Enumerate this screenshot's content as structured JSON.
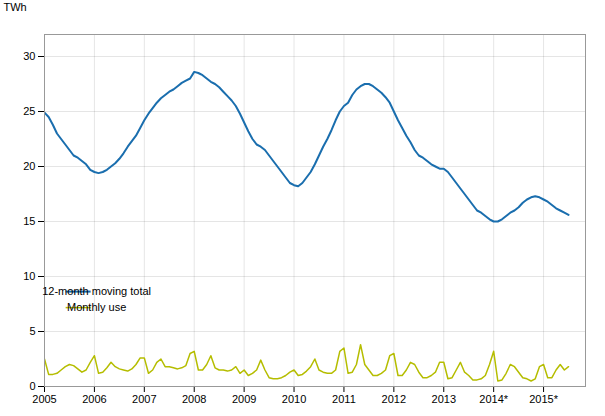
{
  "chart_data": {
    "type": "line",
    "ylabel": "TWh",
    "xlim": [
      2005.0,
      2015.84
    ],
    "ylim": [
      0,
      32
    ],
    "yticks": [
      0,
      5,
      10,
      15,
      20,
      25,
      30
    ],
    "xticks": [
      2005,
      2006,
      2007,
      2008,
      2009,
      2010,
      2011,
      2012,
      2013,
      {
        "value": 2014,
        "label": "2014*"
      },
      {
        "value": 2015,
        "label": "2015*"
      }
    ],
    "grid": true,
    "legend": "lower left",
    "x": [
      2005.0,
      2005.083,
      2005.167,
      2005.25,
      2005.333,
      2005.417,
      2005.5,
      2005.583,
      2005.667,
      2005.75,
      2005.833,
      2005.917,
      2006.0,
      2006.083,
      2006.167,
      2006.25,
      2006.333,
      2006.417,
      2006.5,
      2006.583,
      2006.667,
      2006.75,
      2006.833,
      2006.917,
      2007.0,
      2007.083,
      2007.167,
      2007.25,
      2007.333,
      2007.417,
      2007.5,
      2007.583,
      2007.667,
      2007.75,
      2007.833,
      2007.917,
      2008.0,
      2008.083,
      2008.167,
      2008.25,
      2008.333,
      2008.417,
      2008.5,
      2008.583,
      2008.667,
      2008.75,
      2008.833,
      2008.917,
      2009.0,
      2009.083,
      2009.167,
      2009.25,
      2009.333,
      2009.417,
      2009.5,
      2009.583,
      2009.667,
      2009.75,
      2009.833,
      2009.917,
      2010.0,
      2010.083,
      2010.167,
      2010.25,
      2010.333,
      2010.417,
      2010.5,
      2010.583,
      2010.667,
      2010.75,
      2010.833,
      2010.917,
      2011.0,
      2011.083,
      2011.167,
      2011.25,
      2011.333,
      2011.417,
      2011.5,
      2011.583,
      2011.667,
      2011.75,
      2011.833,
      2011.917,
      2012.0,
      2012.083,
      2012.167,
      2012.25,
      2012.333,
      2012.417,
      2012.5,
      2012.583,
      2012.667,
      2012.75,
      2012.833,
      2012.917,
      2013.0,
      2013.083,
      2013.167,
      2013.25,
      2013.333,
      2013.417,
      2013.5,
      2013.583,
      2013.667,
      2013.75,
      2013.833,
      2013.917,
      2014.0,
      2014.083,
      2014.167,
      2014.25,
      2014.333,
      2014.417,
      2014.5,
      2014.583,
      2014.667,
      2014.75,
      2014.833,
      2014.917,
      2015.0,
      2015.083,
      2015.167,
      2015.25,
      2015.333,
      2015.417,
      2015.5
    ],
    "series": [
      {
        "name": "12-month moving total",
        "color": "#1a6eae",
        "values": [
          24.9,
          24.5,
          23.8,
          23.0,
          22.5,
          22.0,
          21.5,
          21.0,
          20.8,
          20.5,
          20.2,
          19.7,
          19.5,
          19.4,
          19.5,
          19.7,
          20.0,
          20.3,
          20.7,
          21.2,
          21.8,
          22.3,
          22.8,
          23.5,
          24.2,
          24.8,
          25.3,
          25.8,
          26.2,
          26.5,
          26.8,
          27.0,
          27.3,
          27.6,
          27.8,
          28.0,
          28.6,
          28.5,
          28.3,
          28.0,
          27.7,
          27.5,
          27.2,
          26.8,
          26.4,
          26.0,
          25.5,
          24.8,
          24.0,
          23.2,
          22.5,
          22.0,
          21.8,
          21.5,
          21.0,
          20.5,
          20.0,
          19.5,
          19.0,
          18.5,
          18.3,
          18.2,
          18.5,
          19.0,
          19.5,
          20.2,
          21.0,
          21.8,
          22.5,
          23.3,
          24.2,
          25.0,
          25.5,
          25.8,
          26.5,
          27.0,
          27.3,
          27.5,
          27.5,
          27.3,
          27.0,
          26.7,
          26.3,
          25.8,
          25.0,
          24.2,
          23.5,
          22.8,
          22.2,
          21.5,
          21.0,
          20.8,
          20.5,
          20.2,
          20.0,
          19.8,
          19.8,
          19.5,
          19.0,
          18.5,
          18.0,
          17.5,
          17.0,
          16.5,
          16.0,
          15.8,
          15.5,
          15.2,
          15.0,
          15.0,
          15.2,
          15.5,
          15.8,
          16.0,
          16.3,
          16.7,
          17.0,
          17.2,
          17.3,
          17.2,
          17.0,
          16.8,
          16.5,
          16.2,
          16.0,
          15.8,
          15.6
        ]
      },
      {
        "name": "Monthly use",
        "color": "#b5bd00",
        "values": [
          2.5,
          1.1,
          1.1,
          1.2,
          1.5,
          1.8,
          2.0,
          1.9,
          1.6,
          1.3,
          1.5,
          2.2,
          2.8,
          1.2,
          1.3,
          1.7,
          2.2,
          1.8,
          1.6,
          1.5,
          1.4,
          1.6,
          2.0,
          2.6,
          2.6,
          1.2,
          1.5,
          2.2,
          2.5,
          1.8,
          1.8,
          1.7,
          1.6,
          1.7,
          1.9,
          3.0,
          3.2,
          1.5,
          1.5,
          2.0,
          2.8,
          1.7,
          1.5,
          1.5,
          1.4,
          1.5,
          1.8,
          1.2,
          1.5,
          1.0,
          1.2,
          1.5,
          2.4,
          1.5,
          0.8,
          0.7,
          0.7,
          0.8,
          1.0,
          1.3,
          1.5,
          1.0,
          1.1,
          1.4,
          1.8,
          2.5,
          1.5,
          1.3,
          1.2,
          1.2,
          1.5,
          3.2,
          3.5,
          1.2,
          1.3,
          2.0,
          3.8,
          2.0,
          1.5,
          1.0,
          1.0,
          1.2,
          1.5,
          2.8,
          3.0,
          1.0,
          1.0,
          1.5,
          2.2,
          2.0,
          1.3,
          0.8,
          0.8,
          1.0,
          1.3,
          2.2,
          2.2,
          0.7,
          0.8,
          1.5,
          2.2,
          1.3,
          1.0,
          0.6,
          0.6,
          0.7,
          1.0,
          2.0,
          3.2,
          0.5,
          0.6,
          1.2,
          2.0,
          1.8,
          1.3,
          0.8,
          0.7,
          0.5,
          0.7,
          1.8,
          2.0,
          0.8,
          0.8,
          1.5,
          2.0,
          1.5,
          1.8
        ]
      }
    ]
  }
}
